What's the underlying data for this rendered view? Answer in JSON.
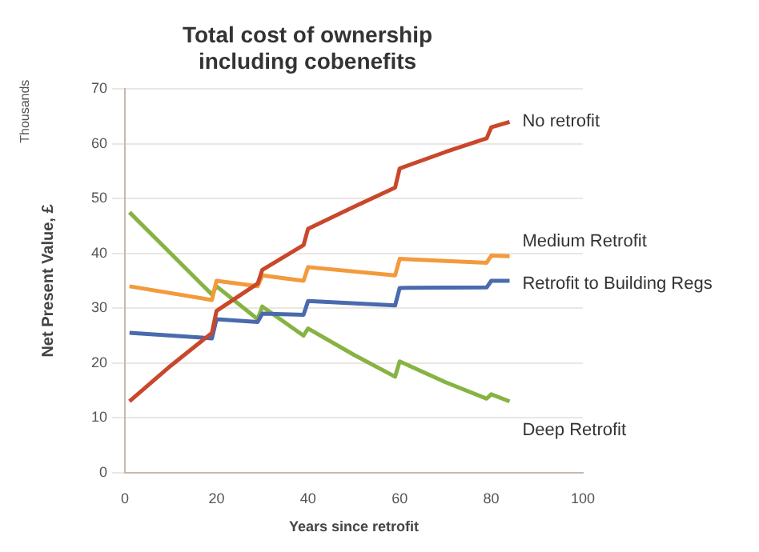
{
  "chart_data": {
    "type": "line",
    "title": "Total cost of ownership\nincluding cobenefits",
    "xlabel": "Years since retrofit",
    "ylabel": "Net Present Value, £",
    "annotations": [
      "Thousands"
    ],
    "xlim": [
      0,
      100
    ],
    "xticks": [
      0,
      20,
      40,
      60,
      80,
      100
    ],
    "ylim": [
      0,
      70
    ],
    "yticks": [
      0,
      10,
      20,
      30,
      40,
      50,
      60,
      70
    ],
    "grid": "y",
    "legend": false,
    "marker": "none",
    "line_style": "solid",
    "series": [
      {
        "name": "No retrofit",
        "color": "#c9472a",
        "x": [
          1,
          10,
          19,
          20,
          29,
          30,
          39,
          40,
          50,
          59,
          60,
          70,
          79,
          80,
          84
        ],
        "values": [
          13,
          19.5,
          25.5,
          29.5,
          34.5,
          37,
          41.5,
          44.5,
          48.5,
          52,
          55.5,
          58.5,
          61,
          63,
          64
        ]
      },
      {
        "name": "Medium Retrofit",
        "color": "#f39a3c",
        "x": [
          1,
          19,
          20,
          29,
          30,
          39,
          40,
          59,
          60,
          79,
          80,
          84
        ],
        "values": [
          34,
          31.5,
          35,
          34,
          36,
          35,
          37.5,
          36,
          39,
          38.3,
          39.6,
          39.5
        ]
      },
      {
        "name": "Retrofit to Building Regs",
        "color": "#4a6aad",
        "x": [
          1,
          19,
          20,
          29,
          30,
          39,
          40,
          59,
          60,
          79,
          80,
          84
        ],
        "values": [
          25.5,
          24.5,
          28,
          27.5,
          29,
          28.8,
          31.3,
          30.5,
          33.7,
          33.8,
          35,
          35
        ]
      },
      {
        "name": "Deep Retrofit",
        "color": "#86b342",
        "x": [
          1,
          10,
          19,
          20,
          29,
          30,
          39,
          40,
          50,
          59,
          60,
          70,
          79,
          80,
          84
        ],
        "values": [
          47.5,
          40,
          32.5,
          34,
          28,
          30.3,
          25,
          26.3,
          21.5,
          17.5,
          20.3,
          16.5,
          13.5,
          14.3,
          13
        ]
      }
    ]
  }
}
